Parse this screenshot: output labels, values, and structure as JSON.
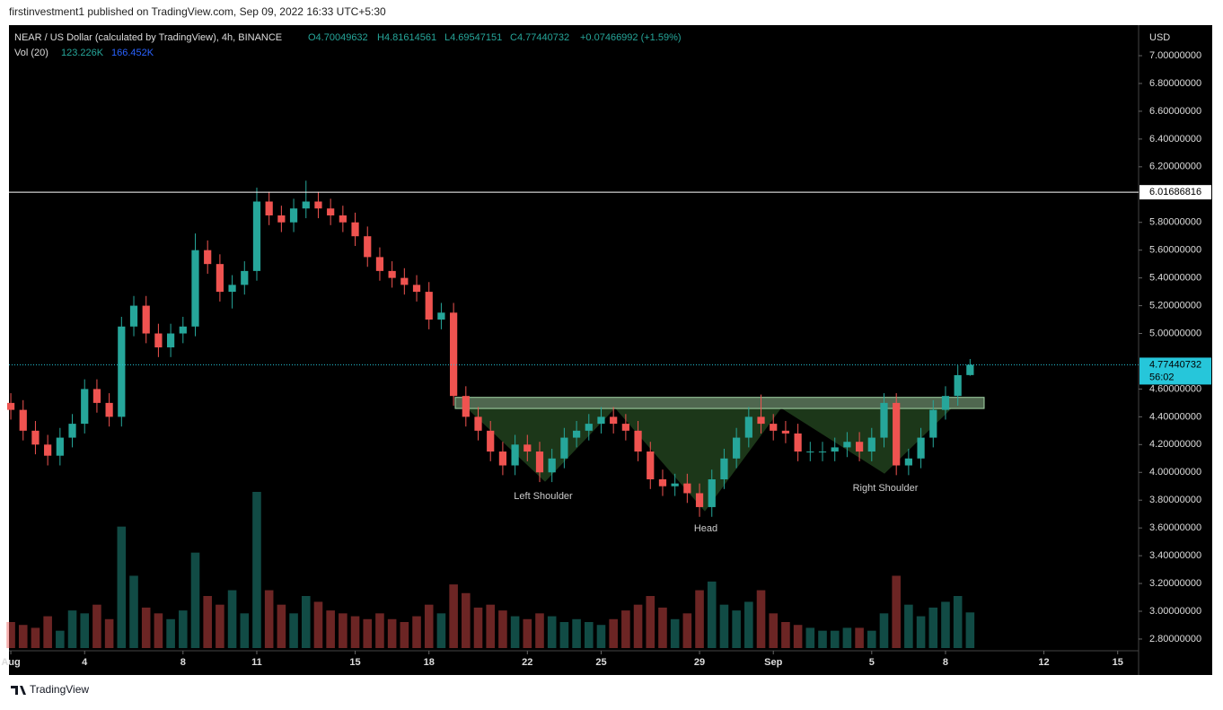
{
  "header": {
    "publisher": "firstinvestment1 published on TradingView.com, Sep 09, 2022 16:33 UTC+5:30",
    "footer": "TradingView"
  },
  "chart_data": {
    "type": "candlestick",
    "title": "NEAR / US Dollar (calculated by TradingView), 4h, BINANCE",
    "ohlc_labels": {
      "open": "O4.70049632",
      "high": "H4.81614561",
      "low": "L4.69547151",
      "close": "C4.77440732",
      "change": "+0.07466992 (+1.59%)"
    },
    "volume_label": "Vol (20)",
    "volume_printed": [
      "123.226K",
      "166.452K"
    ],
    "axis_unit": "USD",
    "up_color": "#26a69a",
    "down_color": "#ef5350",
    "open": [
      4.5,
      4.45,
      4.3,
      4.2,
      4.12,
      4.25,
      4.35,
      4.6,
      4.5,
      4.4,
      5.05,
      5.2,
      5.0,
      4.9,
      5.0,
      5.05,
      5.6,
      5.5,
      5.3,
      5.35,
      5.45,
      5.95,
      5.85,
      5.8,
      5.9,
      5.95,
      5.9,
      5.85,
      5.8,
      5.7,
      5.55,
      5.45,
      5.4,
      5.35,
      5.3,
      5.1,
      5.15,
      4.55,
      4.4,
      4.3,
      4.15,
      4.05,
      4.2,
      4.15,
      4.0,
      4.1,
      4.25,
      4.3,
      4.35,
      4.4,
      4.35,
      4.3,
      4.15,
      3.95,
      3.9,
      3.92,
      3.85,
      3.75,
      3.95,
      4.1,
      4.25,
      4.4,
      4.35,
      4.3,
      4.28,
      4.15,
      4.15,
      4.15,
      4.18,
      4.22,
      4.15,
      4.25,
      4.5,
      4.05,
      4.1,
      4.25,
      4.45,
      4.55,
      4.70049632
    ],
    "high": [
      4.57,
      4.52,
      4.37,
      4.27,
      4.32,
      4.42,
      4.67,
      4.67,
      4.57,
      5.12,
      5.27,
      5.27,
      5.07,
      5.07,
      5.12,
      5.72,
      5.67,
      5.57,
      5.42,
      5.52,
      6.05,
      6.02,
      5.92,
      5.97,
      6.1,
      6.02,
      5.97,
      5.92,
      5.87,
      5.77,
      5.62,
      5.52,
      5.47,
      5.42,
      5.37,
      5.22,
      5.22,
      4.62,
      4.47,
      4.37,
      4.22,
      4.27,
      4.27,
      4.22,
      4.17,
      4.32,
      4.37,
      4.42,
      4.47,
      4.47,
      4.42,
      4.37,
      4.22,
      4.02,
      3.99,
      3.99,
      3.92,
      4.02,
      4.17,
      4.32,
      4.47,
      4.56,
      4.42,
      4.37,
      4.35,
      4.22,
      4.22,
      4.25,
      4.29,
      4.29,
      4.32,
      4.57,
      4.57,
      4.17,
      4.32,
      4.52,
      4.62,
      4.77,
      4.81614561
    ],
    "low": [
      4.38,
      4.23,
      4.13,
      4.05,
      4.05,
      4.18,
      4.28,
      4.43,
      4.33,
      4.33,
      4.98,
      4.93,
      4.83,
      4.83,
      4.93,
      4.98,
      5.43,
      5.23,
      5.18,
      5.28,
      5.38,
      5.78,
      5.73,
      5.73,
      5.83,
      5.83,
      5.78,
      5.73,
      5.63,
      5.48,
      5.38,
      5.33,
      5.28,
      5.23,
      5.03,
      5.03,
      4.48,
      4.33,
      4.23,
      4.08,
      3.98,
      3.98,
      4.08,
      3.93,
      3.93,
      4.03,
      4.18,
      4.23,
      4.28,
      4.28,
      4.23,
      4.08,
      3.88,
      3.83,
      3.83,
      3.78,
      3.68,
      3.68,
      3.88,
      4.03,
      4.18,
      4.28,
      4.23,
      4.21,
      4.08,
      4.08,
      4.08,
      4.08,
      4.11,
      4.08,
      4.08,
      4.18,
      3.98,
      3.98,
      4.03,
      4.18,
      4.38,
      4.48,
      4.69547151
    ],
    "close": [
      4.45,
      4.3,
      4.2,
      4.12,
      4.25,
      4.35,
      4.6,
      4.5,
      4.4,
      5.05,
      5.2,
      5.0,
      4.9,
      5.0,
      5.05,
      5.6,
      5.5,
      5.3,
      5.35,
      5.45,
      5.95,
      5.85,
      5.8,
      5.9,
      5.95,
      5.9,
      5.85,
      5.8,
      5.7,
      5.55,
      5.45,
      5.4,
      5.35,
      5.3,
      5.1,
      5.15,
      4.55,
      4.4,
      4.3,
      4.15,
      4.05,
      4.2,
      4.15,
      4.0,
      4.1,
      4.25,
      4.3,
      4.35,
      4.4,
      4.35,
      4.3,
      4.15,
      3.95,
      3.9,
      3.92,
      3.85,
      3.75,
      3.95,
      4.1,
      4.25,
      4.4,
      4.35,
      4.3,
      4.28,
      4.15,
      4.15,
      4.15,
      4.18,
      4.22,
      4.15,
      4.25,
      4.5,
      4.05,
      4.1,
      4.25,
      4.45,
      4.55,
      4.7,
      4.77440732
    ],
    "volume": [
      90,
      80,
      70,
      110,
      60,
      130,
      120,
      150,
      100,
      420,
      250,
      140,
      120,
      100,
      130,
      330,
      180,
      150,
      200,
      120,
      540,
      200,
      150,
      120,
      180,
      160,
      130,
      120,
      110,
      100,
      120,
      100,
      90,
      110,
      150,
      120,
      220,
      190,
      140,
      150,
      130,
      110,
      100,
      120,
      110,
      90,
      100,
      90,
      80,
      100,
      130,
      150,
      180,
      140,
      100,
      120,
      200,
      230,
      150,
      130,
      160,
      200,
      120,
      90,
      80,
      70,
      60,
      60,
      70,
      70,
      60,
      120,
      250,
      150,
      110,
      140,
      160,
      180,
      123.226
    ],
    "ylim": [
      2.735,
      7.22
    ],
    "yticks": [
      {
        "value": 2.8,
        "label": "2.80000000"
      },
      {
        "value": 3.0,
        "label": "3.00000000"
      },
      {
        "value": 3.2,
        "label": "3.20000000"
      },
      {
        "value": 3.4,
        "label": "3.40000000"
      },
      {
        "value": 3.6,
        "label": "3.60000000"
      },
      {
        "value": 3.8,
        "label": "3.80000000"
      },
      {
        "value": 4.0,
        "label": "4.00000000"
      },
      {
        "value": 4.2,
        "label": "4.20000000"
      },
      {
        "value": 4.4,
        "label": "4.40000000"
      },
      {
        "value": 4.6,
        "label": "4.60000000"
      },
      {
        "value": 5.0,
        "label": "5.00000000"
      },
      {
        "value": 5.2,
        "label": "5.20000000"
      },
      {
        "value": 5.4,
        "label": "5.40000000"
      },
      {
        "value": 5.6,
        "label": "5.60000000"
      },
      {
        "value": 5.8,
        "label": "5.80000000"
      },
      {
        "value": 6.2,
        "label": "6.20000000"
      },
      {
        "value": 6.4,
        "label": "6.40000000"
      },
      {
        "value": 6.6,
        "label": "6.60000000"
      },
      {
        "value": 6.8,
        "label": "6.80000000"
      },
      {
        "value": 7.0,
        "label": "7.00000000"
      }
    ],
    "xlim": [
      -0.15,
      91.7
    ],
    "xticks": [
      {
        "value": 0,
        "label": "Aug"
      },
      {
        "value": 6,
        "label": "4"
      },
      {
        "value": 14,
        "label": "8"
      },
      {
        "value": 20,
        "label": "11"
      },
      {
        "value": 28,
        "label": "15"
      },
      {
        "value": 34,
        "label": "18"
      },
      {
        "value": 42,
        "label": "22"
      },
      {
        "value": 48,
        "label": "25"
      },
      {
        "value": 56,
        "label": "29"
      },
      {
        "value": 62,
        "label": "Sep"
      },
      {
        "value": 70,
        "label": "5"
      },
      {
        "value": 76,
        "label": "8"
      },
      {
        "value": 84,
        "label": "12"
      },
      {
        "value": 90,
        "label": "15"
      }
    ],
    "resistance": {
      "value": 6.01686816,
      "label": "6.01686816"
    },
    "last_price": {
      "value": 4.77440732,
      "label": "4.77440732",
      "countdown": "56:02"
    },
    "neckline_zone": [
      4.46,
      4.54
    ],
    "annotations": [
      "Left Shoulder",
      "Head",
      "Right Shoulder"
    ]
  }
}
